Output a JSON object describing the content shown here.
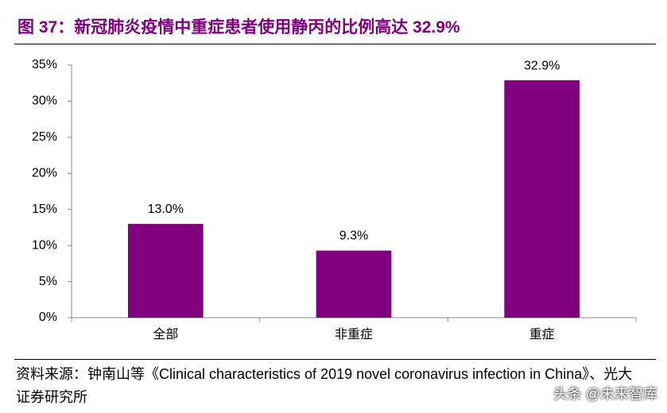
{
  "chart_data": {
    "type": "bar",
    "title": "图 37：新冠肺炎疫情中重症患者使用静丙的比例高达 32.9%",
    "categories": [
      "全部",
      "非重症",
      "重症"
    ],
    "values": [
      13.0,
      9.3,
      32.9
    ],
    "value_labels": [
      "13.0%",
      "9.3%",
      "32.9%"
    ],
    "color": "#800080",
    "ylim": [
      0,
      35
    ],
    "yticks": [
      {
        "value": 0,
        "label": "0%"
      },
      {
        "value": 5,
        "label": "5%"
      },
      {
        "value": 10,
        "label": "10%"
      },
      {
        "value": 15,
        "label": "15%"
      },
      {
        "value": 20,
        "label": "20%"
      },
      {
        "value": 25,
        "label": "25%"
      },
      {
        "value": 30,
        "label": "30%"
      },
      {
        "value": 35,
        "label": "35%"
      }
    ],
    "grid": false,
    "source": "资料来源：钟南山等《Clinical characteristics of 2019 novel coronavirus infection in China》、光大证券研究所",
    "watermark": "头条 @未来智库"
  }
}
